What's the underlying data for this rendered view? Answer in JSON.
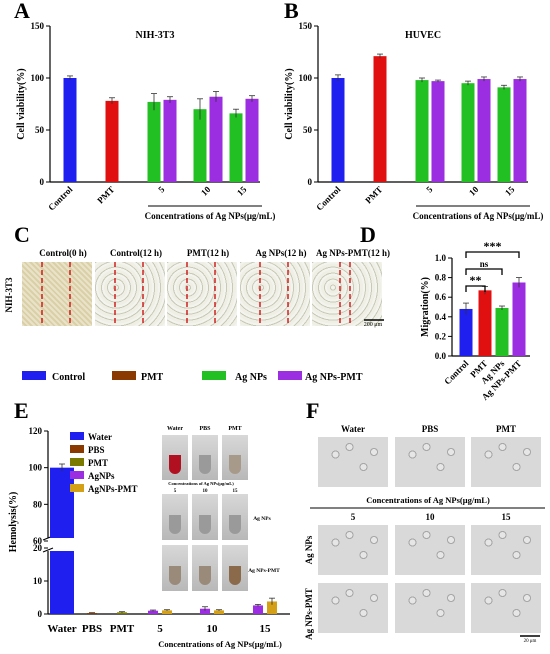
{
  "panel_letters": [
    "A",
    "B",
    "C",
    "D",
    "E",
    "F"
  ],
  "colors": {
    "blue": "#1f1ff0",
    "red": "#e01010",
    "green": "#22c022",
    "purple": "#9a2ee0",
    "brown": "#8a3a00",
    "olive": "#7a7a00",
    "gold": "#d4a017",
    "pink": "#f6b3e8"
  },
  "panel_c": {
    "row_label": "NIH-3T3",
    "image_titles": [
      "Control(0 h)",
      "Control(12 h)",
      "PMT(12 h)",
      "Ag NPs(12 h)",
      "Ag NPs-PMT(12 h)"
    ],
    "scale_bar": "200 μm"
  },
  "legend_main": [
    {
      "name": "Control",
      "color": "#1f1ff0"
    },
    {
      "name": "PMT",
      "color": "#8a3a00"
    },
    {
      "name": "Ag NPs",
      "color": "#22c022"
    },
    {
      "name": "Ag NPs-PMT",
      "color": "#9a2ee0"
    }
  ],
  "panel_e_images": {
    "top_labels": [
      "Water",
      "PBS",
      "PMT"
    ],
    "conc_caption": "Concentrations of Ag NPs(μg/mL)",
    "conc_values": [
      "5",
      "10",
      "15"
    ],
    "row_labels": [
      "Ag NPs",
      "Ag NPs-PMT"
    ]
  },
  "panel_f": {
    "top_labels": [
      "Water",
      "PBS",
      "PMT"
    ],
    "conc_caption": "Concentrations of Ag NPs(μg/mL)",
    "conc_values": [
      "5",
      "10",
      "15"
    ],
    "row_labels": [
      "Ag NPs",
      "Ag NPs-PMT"
    ],
    "scale_bar": "20 μm"
  },
  "chart_data": [
    {
      "id": "A",
      "type": "bar",
      "title": "NIH-3T3",
      "ylabel": "Cell viability(%)",
      "xlabel": "Concentrations of Ag NPs(μg/mL)",
      "ylim": [
        0,
        150
      ],
      "yticks": [
        0,
        50,
        100,
        150
      ],
      "categories": [
        "Control",
        "PMT",
        "5",
        "10",
        "15"
      ],
      "bars": [
        {
          "category": "Control",
          "series": "Control",
          "value": 100,
          "error": 2,
          "color": "#1f1ff0"
        },
        {
          "category": "PMT",
          "series": "PMT",
          "value": 78,
          "error": 3,
          "color": "#e01010"
        },
        {
          "category": "5",
          "series": "Ag NPs",
          "value": 77,
          "error": 8,
          "color": "#22c022"
        },
        {
          "category": "5",
          "series": "Ag NPs-PMT",
          "value": 79,
          "error": 3,
          "color": "#9a2ee0"
        },
        {
          "category": "10",
          "series": "Ag NPs",
          "value": 70,
          "error": 10,
          "color": "#22c022"
        },
        {
          "category": "10",
          "series": "Ag NPs-PMT",
          "value": 82,
          "error": 5,
          "color": "#9a2ee0"
        },
        {
          "category": "15",
          "series": "Ag NPs",
          "value": 66,
          "error": 4,
          "color": "#22c022"
        },
        {
          "category": "15",
          "series": "Ag NPs-PMT",
          "value": 80,
          "error": 3,
          "color": "#9a2ee0"
        }
      ]
    },
    {
      "id": "B",
      "type": "bar",
      "title": "HUVEC",
      "ylabel": "Cell viability(%)",
      "xlabel": "Concentrations of Ag NPs(μg/mL)",
      "ylim": [
        0,
        150
      ],
      "yticks": [
        0,
        50,
        100,
        150
      ],
      "categories": [
        "Control",
        "PMT",
        "5",
        "10",
        "15"
      ],
      "bars": [
        {
          "category": "Control",
          "series": "Control",
          "value": 100,
          "error": 3,
          "color": "#1f1ff0"
        },
        {
          "category": "PMT",
          "series": "PMT",
          "value": 121,
          "error": 2,
          "color": "#e01010"
        },
        {
          "category": "5",
          "series": "Ag NPs",
          "value": 98,
          "error": 2,
          "color": "#22c022"
        },
        {
          "category": "5",
          "series": "Ag NPs-PMT",
          "value": 97,
          "error": 1,
          "color": "#9a2ee0"
        },
        {
          "category": "10",
          "series": "Ag NPs",
          "value": 95,
          "error": 2,
          "color": "#22c022"
        },
        {
          "category": "10",
          "series": "Ag NPs-PMT",
          "value": 99,
          "error": 2,
          "color": "#9a2ee0"
        },
        {
          "category": "15",
          "series": "Ag NPs",
          "value": 91,
          "error": 2,
          "color": "#22c022"
        },
        {
          "category": "15",
          "series": "Ag NPs-PMT",
          "value": 99,
          "error": 2,
          "color": "#9a2ee0"
        }
      ]
    },
    {
      "id": "D",
      "type": "bar",
      "ylabel": "Migration(%)",
      "ylim": [
        0,
        1.0
      ],
      "yticks": [
        0.0,
        0.2,
        0.4,
        0.6,
        0.8,
        1.0
      ],
      "categories": [
        "Control",
        "PMT",
        "Ag NPs",
        "Ag NPs-PMT"
      ],
      "values": [
        0.48,
        0.67,
        0.49,
        0.75
      ],
      "errors": [
        0.06,
        0.04,
        0.02,
        0.05
      ],
      "colors": [
        "#1f1ff0",
        "#e01010",
        "#22c022",
        "#9a2ee0"
      ],
      "annotations": [
        {
          "pair": [
            "Control",
            "PMT"
          ],
          "label": "**"
        },
        {
          "pair": [
            "Control",
            "Ag NPs"
          ],
          "label": "ns"
        },
        {
          "pair": [
            "Control",
            "Ag NPs-PMT"
          ],
          "label": "***"
        }
      ]
    },
    {
      "id": "E",
      "type": "bar",
      "ylabel": "Hemolysis(%)",
      "xlabel": "Concentrations of Ag NPs(μg/mL)",
      "axis_break": [
        20,
        60
      ],
      "ylim": [
        0,
        120
      ],
      "yticks": [
        0,
        10,
        20,
        60,
        80,
        100,
        120
      ],
      "categories": [
        "Water",
        "PBS",
        "PMT",
        "5",
        "10",
        "15"
      ],
      "legend": [
        {
          "name": "Water",
          "color": "#1f1ff0"
        },
        {
          "name": "PBS",
          "color": "#8a3a00"
        },
        {
          "name": "PMT",
          "color": "#7a7a00"
        },
        {
          "name": "AgNPs",
          "color": "#9a2ee0"
        },
        {
          "name": "AgNPs-PMT",
          "color": "#d4a017"
        }
      ],
      "bars": [
        {
          "category": "Water",
          "series": "Water",
          "value": 100,
          "error": 2,
          "color": "#1f1ff0"
        },
        {
          "category": "PBS",
          "series": "PBS",
          "value": 0.3,
          "error": 0.1,
          "color": "#8a3a00"
        },
        {
          "category": "PMT",
          "series": "PMT",
          "value": 0.5,
          "error": 0.2,
          "color": "#7a7a00"
        },
        {
          "category": "5",
          "series": "AgNPs",
          "value": 1.0,
          "error": 0.2,
          "color": "#9a2ee0"
        },
        {
          "category": "5",
          "series": "AgNPs-PMT",
          "value": 1.1,
          "error": 0.2,
          "color": "#d4a017"
        },
        {
          "category": "10",
          "series": "AgNPs",
          "value": 1.6,
          "error": 0.6,
          "color": "#9a2ee0"
        },
        {
          "category": "10",
          "series": "AgNPs-PMT",
          "value": 1.1,
          "error": 0.2,
          "color": "#d4a017"
        },
        {
          "category": "15",
          "series": "AgNPs",
          "value": 2.6,
          "error": 0.3,
          "color": "#9a2ee0"
        },
        {
          "category": "15",
          "series": "AgNPs-PMT",
          "value": 3.8,
          "error": 1.0,
          "color": "#d4a017"
        }
      ]
    }
  ]
}
